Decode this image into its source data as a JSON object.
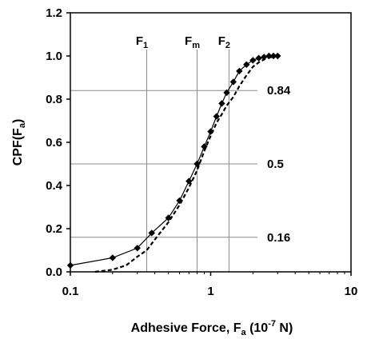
{
  "chart_data": {
    "type": "line",
    "x_scale": "log",
    "xlim": [
      0.1,
      10
    ],
    "ylim": [
      0.0,
      1.2
    ],
    "x_ticks": [
      "0.1",
      "1",
      "10"
    ],
    "y_ticks": [
      "0.0",
      "0.2",
      "0.4",
      "0.6",
      "0.8",
      "1.0",
      "1.2"
    ],
    "xlabel_parts": {
      "main": "Adhesive Force, F",
      "sub": "a",
      "unit_open": " (10",
      "sup": "-7",
      "unit_close": " N)"
    },
    "ylabel_parts": {
      "main": "CPF(F",
      "sub": "a",
      "close": ")"
    },
    "grid": false,
    "reference_lines": {
      "horizontal": [
        {
          "y": 0.84,
          "label": "0.84"
        },
        {
          "y": 0.5,
          "label": "0.5"
        },
        {
          "y": 0.16,
          "label": "0.16"
        }
      ],
      "vertical": [
        {
          "x": 0.35,
          "label_main": "F",
          "label_sub": "1"
        },
        {
          "x": 0.8,
          "label_main": "F",
          "label_sub": "m"
        },
        {
          "x": 1.35,
          "label_main": "F",
          "label_sub": "2"
        }
      ]
    },
    "series": [
      {
        "style": "solid-with-diamond-markers",
        "x": [
          0.1,
          0.2,
          0.3,
          0.38,
          0.5,
          0.6,
          0.7,
          0.8,
          0.9,
          1.0,
          1.1,
          1.2,
          1.3,
          1.45,
          1.6,
          1.8,
          2.0,
          2.2,
          2.4,
          2.6,
          2.8,
          3.0
        ],
        "y": [
          0.03,
          0.065,
          0.11,
          0.18,
          0.25,
          0.33,
          0.42,
          0.5,
          0.58,
          0.65,
          0.72,
          0.78,
          0.83,
          0.88,
          0.93,
          0.96,
          0.98,
          0.99,
          0.995,
          1.0,
          1.0,
          1.0
        ]
      },
      {
        "style": "dashed",
        "x": [
          0.15,
          0.2,
          0.25,
          0.3,
          0.35,
          0.4,
          0.5,
          0.6,
          0.7,
          0.8,
          0.9,
          1.0,
          1.1,
          1.2,
          1.3,
          1.45,
          1.6,
          1.8,
          2.0,
          2.2,
          2.5,
          3.0
        ],
        "y": [
          0.0,
          0.01,
          0.03,
          0.07,
          0.1,
          0.15,
          0.23,
          0.31,
          0.39,
          0.47,
          0.56,
          0.63,
          0.69,
          0.73,
          0.77,
          0.81,
          0.86,
          0.91,
          0.95,
          0.97,
          0.99,
          1.0
        ]
      }
    ]
  }
}
